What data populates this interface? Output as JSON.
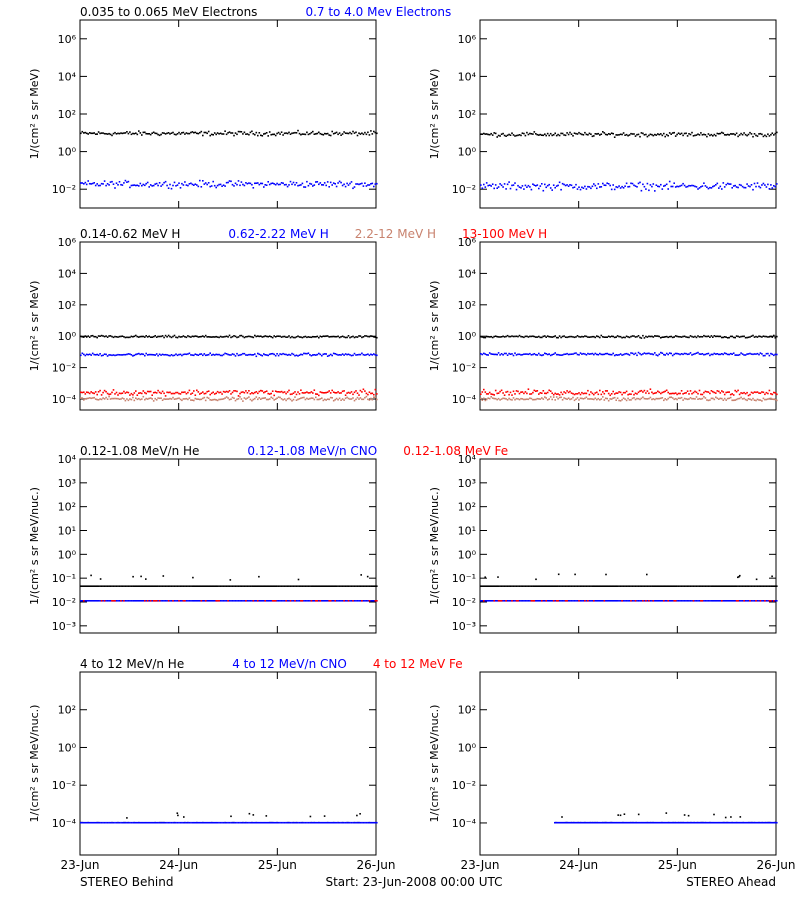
{
  "colors": {
    "black": "#000000",
    "blue": "#0000ff",
    "salmon": "#c8826e",
    "red": "#ff0000"
  },
  "footer": {
    "left": "STEREO Behind",
    "center": "Start: 23-Jun-2008 00:00 UTC",
    "right": "STEREO Ahead"
  },
  "chart_data": [
    {
      "type": "scatter",
      "row": 1,
      "legend": [
        {
          "label": "0.035 to 0.065 MeV Electrons",
          "color": "#000000"
        },
        {
          "label": "0.7 to 4.0 Mev Electrons",
          "color": "#0000ff"
        }
      ],
      "ylabel": "1/(cm² s sr MeV)",
      "yscale": "log",
      "ylim": [
        0.001,
        10000000
      ],
      "yticks": [
        {
          "v": 0.01,
          "label": "10⁻²"
        },
        {
          "v": 1,
          "label": "10⁰"
        },
        {
          "v": 100,
          "label": "10²"
        },
        {
          "v": 10000,
          "label": "10⁴"
        },
        {
          "v": 1000000,
          "label": "10⁶"
        }
      ],
      "xticks": [
        "23-Jun",
        "24-Jun",
        "25-Jun",
        "26-Jun"
      ],
      "xlim": [
        0,
        3
      ],
      "panels": {
        "behind": [
          {
            "name": "0.035 to 0.065 MeV Electrons",
            "color": "#000000",
            "level": 9,
            "spread": 0.08,
            "sparse": false
          },
          {
            "name": "0.7 to 4.0 Mev Electrons",
            "color": "#0000ff",
            "level": 0.018,
            "spread": 0.12,
            "sparse": false
          }
        ],
        "ahead": [
          {
            "name": "0.035 to 0.065 MeV Electrons",
            "color": "#000000",
            "level": 8,
            "spread": 0.08,
            "sparse": false
          },
          {
            "name": "0.7 to 4.0 Mev Electrons",
            "color": "#0000ff",
            "level": 0.014,
            "spread": 0.14,
            "sparse": false
          }
        ]
      }
    },
    {
      "type": "scatter",
      "row": 2,
      "legend": [
        {
          "label": "0.14-0.62 MeV H",
          "color": "#000000"
        },
        {
          "label": "0.62-2.22 MeV H",
          "color": "#0000ff"
        },
        {
          "label": "2.2-12 MeV H",
          "color": "#c8826e"
        },
        {
          "label": "13-100 MeV H",
          "color": "#ff0000"
        }
      ],
      "ylabel": "1/(cm² s sr MeV)",
      "yscale": "log",
      "ylim": [
        2e-05,
        1000000
      ],
      "yticks": [
        {
          "v": 0.0001,
          "label": "10⁻⁴"
        },
        {
          "v": 0.01,
          "label": "10⁻²"
        },
        {
          "v": 1,
          "label": "10⁰"
        },
        {
          "v": 100,
          "label": "10²"
        },
        {
          "v": 10000,
          "label": "10⁴"
        },
        {
          "v": 1000000,
          "label": "10⁶"
        }
      ],
      "xticks": [
        "23-Jun",
        "24-Jun",
        "25-Jun",
        "26-Jun"
      ],
      "xlim": [
        0,
        3
      ],
      "panels": {
        "behind": [
          {
            "name": "0.14-0.62 MeV H",
            "color": "#000000",
            "level": 0.9,
            "spread": 0.05,
            "sparse": false
          },
          {
            "name": "0.62-2.22 MeV H",
            "color": "#0000ff",
            "level": 0.065,
            "spread": 0.06,
            "sparse": false
          },
          {
            "name": "2.2-12 MeV H",
            "color": "#c8826e",
            "level": 0.0001,
            "spread": 0.08,
            "sparse": false
          },
          {
            "name": "13-100 MeV H",
            "color": "#ff0000",
            "level": 0.00025,
            "spread": 0.12,
            "sparse": false
          }
        ],
        "ahead": [
          {
            "name": "0.14-0.62 MeV H",
            "color": "#000000",
            "level": 0.9,
            "spread": 0.05,
            "sparse": false
          },
          {
            "name": "0.62-2.22 MeV H",
            "color": "#0000ff",
            "level": 0.07,
            "spread": 0.06,
            "sparse": false
          },
          {
            "name": "2.2-12 MeV H",
            "color": "#c8826e",
            "level": 0.0001,
            "spread": 0.08,
            "sparse": false
          },
          {
            "name": "13-100 MeV H",
            "color": "#ff0000",
            "level": 0.00025,
            "spread": 0.12,
            "sparse": false
          }
        ]
      }
    },
    {
      "type": "scatter",
      "row": 3,
      "legend": [
        {
          "label": "0.12-1.08 MeV/n He",
          "color": "#000000"
        },
        {
          "label": "0.12-1.08 MeV/n CNO",
          "color": "#0000ff"
        },
        {
          "label": "0.12-1.08 MeV Fe",
          "color": "#ff0000"
        }
      ],
      "ylabel": "1/(cm² s sr MeV/nuc.)",
      "yscale": "log",
      "ylim": [
        0.0005,
        10000
      ],
      "yticks": [
        {
          "v": 0.001,
          "label": "10⁻³"
        },
        {
          "v": 0.01,
          "label": "10⁻²"
        },
        {
          "v": 0.1,
          "label": "10⁻¹"
        },
        {
          "v": 1,
          "label": "10⁰"
        },
        {
          "v": 10,
          "label": "10¹"
        },
        {
          "v": 100,
          "label": "10²"
        },
        {
          "v": 1000,
          "label": "10³"
        },
        {
          "v": 10000,
          "label": "10⁴"
        }
      ],
      "xticks": [
        "23-Jun",
        "24-Jun",
        "25-Jun",
        "26-Jun"
      ],
      "xlim": [
        0,
        3
      ],
      "panels": {
        "behind": [
          {
            "name": "0.12-1.08 MeV/n He",
            "color": "#000000",
            "level": 0.045,
            "spread": 0,
            "sparse": false
          },
          {
            "name": "0.12-1.08 MeV/n CNO",
            "color": "#0000ff",
            "level": 0.011,
            "spread": 0,
            "sparse": false
          },
          {
            "name": "0.12-1.08 MeV Fe",
            "color": "#ff0000",
            "level": 0.011,
            "spread": 0,
            "sparse": true
          }
        ],
        "ahead": [
          {
            "name": "0.12-1.08 MeV/n He",
            "color": "#000000",
            "level": 0.045,
            "spread": 0,
            "sparse": false
          },
          {
            "name": "0.12-1.08 MeV/n CNO",
            "color": "#0000ff",
            "level": 0.011,
            "spread": 0,
            "sparse": false
          },
          {
            "name": "0.12-1.08 MeV Fe",
            "color": "#ff0000",
            "level": 0.011,
            "spread": 0,
            "sparse": true
          }
        ]
      }
    },
    {
      "type": "scatter",
      "row": 4,
      "legend": [
        {
          "label": "4 to 12 MeV/n He",
          "color": "#000000"
        },
        {
          "label": "4 to 12 MeV/n CNO",
          "color": "#0000ff"
        },
        {
          "label": "4 to 12 MeV Fe",
          "color": "#ff0000"
        }
      ],
      "ylabel": "1/(cm² s sr MeV/nuc.)",
      "yscale": "log",
      "ylim": [
        2e-06,
        10000
      ],
      "yticks": [
        {
          "v": 0.0001,
          "label": "10⁻⁴"
        },
        {
          "v": 0.01,
          "label": "10⁻²"
        },
        {
          "v": 1,
          "label": "10⁰"
        },
        {
          "v": 100,
          "label": "10²"
        }
      ],
      "xticks": [
        "23-Jun",
        "24-Jun",
        "25-Jun",
        "26-Jun"
      ],
      "xlim": [
        0,
        3
      ],
      "panels": {
        "behind": [
          {
            "name": "4 to 12 MeV/n He",
            "color": "#000000",
            "level": 0.0001,
            "spread": 0,
            "sparse": true
          },
          {
            "name": "4 to 12 MeV/n CNO",
            "color": "#0000ff",
            "level": 0.0001,
            "spread": 0,
            "sparse": false
          }
        ],
        "ahead": [
          {
            "name": "4 to 12 MeV/n He",
            "color": "#000000",
            "level": 0.0001,
            "spread": 0,
            "sparse": true
          },
          {
            "name": "4 to 12 MeV/n CNO",
            "color": "#0000ff",
            "level": 0.0001,
            "spread": 0,
            "sparse": false
          }
        ]
      }
    }
  ]
}
